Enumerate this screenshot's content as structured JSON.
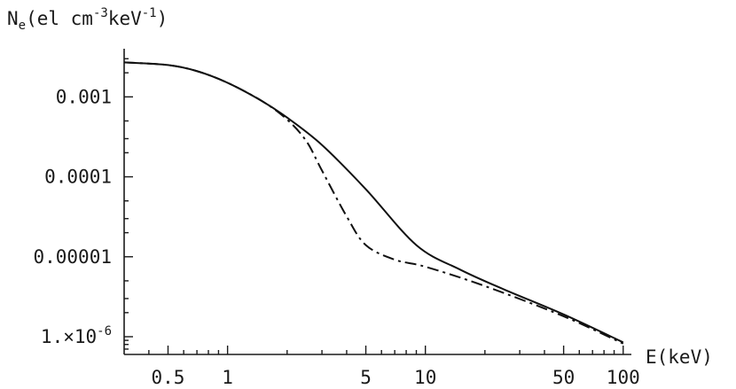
{
  "chart_data": {
    "type": "line",
    "title": "",
    "xlabel": "E(keV)",
    "ylabel": "N<sub>e</sub>(el cm<sup>-3</sup>keV<sup>-1</sup>)",
    "ylabel_parts": {
      "symbol": "N",
      "symbol_sub": "e",
      "open": "(el cm",
      "exp1": "-3",
      "mid": "keV",
      "exp2": "-1",
      "close": ")"
    },
    "xscale": "log",
    "yscale": "log",
    "xlim": [
      0.3,
      110
    ],
    "ylim": [
      6e-07,
      0.004
    ],
    "x_ticks": [
      {
        "value": 0.5,
        "label": "0.5"
      },
      {
        "value": 1,
        "label": "1"
      },
      {
        "value": 5,
        "label": "5"
      },
      {
        "value": 10,
        "label": "10"
      },
      {
        "value": 50,
        "label": "50"
      },
      {
        "value": 100,
        "label": "100"
      }
    ],
    "x_minor_ticks": [
      0.4,
      0.6,
      0.7,
      0.8,
      0.9,
      2,
      3,
      4,
      6,
      7,
      8,
      9,
      20,
      30,
      40,
      60,
      70,
      80,
      90
    ],
    "y_ticks": [
      {
        "value": 0.001,
        "label": "0.001"
      },
      {
        "value": 0.0001,
        "label": "0.0001"
      },
      {
        "value": 1e-05,
        "label": "0.00001"
      },
      {
        "value": 1e-06,
        "label": "1.×10",
        "exp": "-6"
      }
    ],
    "y_minor_ticks": [
      0.002,
      0.003,
      0.0002,
      0.0003,
      0.0005,
      2e-05,
      3e-05,
      5e-05,
      2e-06,
      3e-06,
      5e-06,
      7e-07,
      8e-07,
      9e-07
    ],
    "grid": false,
    "legend": "none",
    "series": [
      {
        "style": "solid",
        "x": [
          0.3,
          0.5,
          0.7,
          1.0,
          1.5,
          2.0,
          3.0,
          5.0,
          9.0,
          15,
          25,
          50,
          100
        ],
        "y": [
          0.0027,
          0.0025,
          0.0021,
          0.0015,
          0.00088,
          0.00055,
          0.00025,
          7e-05,
          1.4e-05,
          6.9e-06,
          3.9e-06,
          1.9e-06,
          8.5e-07
        ]
      },
      {
        "style": "dash-dot",
        "x": [
          0.3,
          0.5,
          0.7,
          1.0,
          1.5,
          2.0,
          2.5,
          3.0,
          4.0,
          5.0,
          7.0,
          10,
          20,
          50,
          100
        ],
        "y": [
          0.0027,
          0.0025,
          0.0021,
          0.0015,
          0.00088,
          0.00052,
          0.00028,
          0.00012,
          3.2e-05,
          1.4e-05,
          9.2e-06,
          7.5e-06,
          4.3e-06,
          1.8e-06,
          8.2e-07
        ]
      }
    ]
  }
}
